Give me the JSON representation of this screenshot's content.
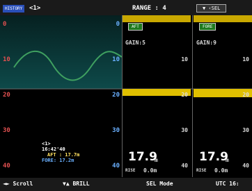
{
  "top_bar": {
    "history": "HISTORY",
    "channel": "<1>",
    "range": "RANGE : 4",
    "sel": "▼ ‹SEL"
  },
  "left_panel": {
    "scale_left": [
      "0",
      "10",
      "20",
      "30",
      "40"
    ],
    "scale_right": [
      "0",
      "10",
      "20",
      "30",
      "40"
    ],
    "cursor": {
      "channel": "<1>",
      "time": "16:42'40",
      "aft": "AFT : 17.7m",
      "fore": "FORE: 17.2m"
    }
  },
  "panels": [
    {
      "label": "AFT",
      "gain": "GAIN:5",
      "scale": [
        "10",
        "20",
        "30",
        "40"
      ],
      "depth": "17.9",
      "depth_unit": "m",
      "rise": "RISE",
      "rise_value": "0.0m"
    },
    {
      "label": "FORE",
      "gain": "GAIN:9",
      "scale": [
        "10",
        "20",
        "30",
        "40"
      ],
      "depth": "17.9",
      "depth_unit": "m",
      "rise": "RISE",
      "rise_value": "0.0m"
    }
  ],
  "bottom_bar": {
    "items": [
      "◄► Scroll",
      "▼▲ BRILL",
      "SEL Mode",
      "UTC 16:"
    ]
  }
}
